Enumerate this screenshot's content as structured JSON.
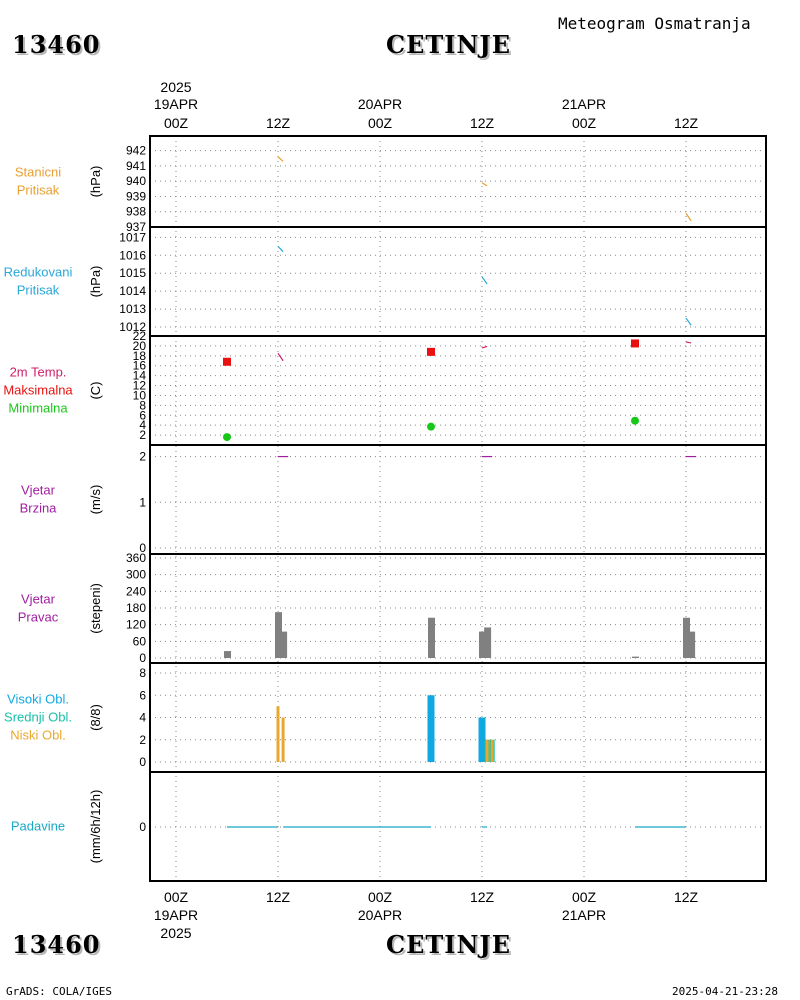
{
  "header": {
    "station_id": "13460",
    "station_name": "CETINJE",
    "title": "Meteogram Osmatranja"
  },
  "footer": {
    "station_id": "13460",
    "station_name": "CETINJE",
    "credit": "GrADS: COLA/IGES",
    "timestamp": "2025-04-21-23:28"
  },
  "colors": {
    "pressure": "#e8a030",
    "reduced_pressure": "#2aa8d8",
    "temp": "#d0206a",
    "tmax": "#e81010",
    "tmin": "#18c818",
    "wind": "#a020a0",
    "bars": "#808080",
    "high_cloud": "#10a8e0",
    "mid_cloud": "#18c0a8",
    "low_cloud": "#e8a830",
    "precip": "#18a8c8"
  },
  "time_axis": {
    "top": [
      {
        "year": "2025",
        "date": "19APR",
        "hour": "00Z"
      },
      {
        "date": "",
        "hour": "12Z"
      },
      {
        "date": "20APR",
        "hour": "00Z"
      },
      {
        "date": "",
        "hour": "12Z"
      },
      {
        "date": "21APR",
        "hour": "00Z"
      },
      {
        "date": "",
        "hour": "12Z"
      }
    ],
    "bottom": [
      {
        "hour": "00Z",
        "date": "19APR",
        "year": "2025"
      },
      {
        "hour": "12Z",
        "date": ""
      },
      {
        "hour": "00Z",
        "date": "20APR"
      },
      {
        "hour": "12Z",
        "date": ""
      },
      {
        "hour": "00Z",
        "date": "21APR"
      },
      {
        "hour": "12Z",
        "date": ""
      }
    ]
  },
  "chart_data": [
    {
      "type": "line",
      "panel": "station_pressure",
      "labels": [
        "Stanicni",
        "Pritisak"
      ],
      "ylabel": "(hPa)",
      "ylim": [
        937,
        942.5
      ],
      "yticks": [
        942,
        941,
        940,
        939,
        938,
        937
      ],
      "series": [
        {
          "points": [
            [
              12,
              941.6
            ],
            [
              12.6,
              941.3
            ],
            [
              36,
              939.9
            ],
            [
              36.6,
              939.7
            ],
            [
              60,
              937.9
            ],
            [
              60.6,
              937.4
            ]
          ]
        }
      ]
    },
    {
      "type": "line",
      "panel": "reduced_pressure",
      "labels": [
        "Redukovani",
        "Pritisak"
      ],
      "ylabel": "(hPa)",
      "ylim": [
        1011.5,
        1017.3
      ],
      "yticks": [
        1017,
        1016,
        1015,
        1014,
        1013,
        1012
      ],
      "series": [
        {
          "points": [
            [
              12,
              1016.5
            ],
            [
              12.6,
              1016.2
            ],
            [
              36,
              1014.8
            ],
            [
              36.6,
              1014.4
            ],
            [
              60,
              1012.5
            ],
            [
              60.6,
              1012.1
            ]
          ]
        }
      ]
    },
    {
      "type": "scatter",
      "panel": "temperature",
      "labels": [
        "2m Temp.",
        "Maksimalna",
        "Minimalna"
      ],
      "ylabel": "(C)",
      "ylim": [
        0,
        22
      ],
      "yticks": [
        2,
        4,
        6,
        8,
        10,
        12,
        14,
        16,
        18,
        20,
        22
      ],
      "temp_2m": [
        [
          12,
          18.5
        ],
        [
          12.6,
          17
        ],
        [
          36,
          19.6
        ],
        [
          36.6,
          19.9
        ],
        [
          60,
          20.8
        ],
        [
          60.6,
          20.6
        ]
      ],
      "tmax": [
        [
          6,
          16.8
        ],
        [
          30,
          18.8
        ],
        [
          54,
          20.5
        ]
      ],
      "tmin": [
        [
          6,
          1.6
        ],
        [
          30,
          3.7
        ],
        [
          54,
          4.9
        ]
      ]
    },
    {
      "type": "line",
      "panel": "wind_speed",
      "labels": [
        "Vjetar",
        "Brzina"
      ],
      "ylabel": "(m/s)",
      "ylim": [
        0,
        2.1
      ],
      "yticks": [
        0,
        1,
        2
      ],
      "series": [
        {
          "points": [
            [
              12,
              2.0
            ],
            [
              13.2,
              2.0
            ],
            [
              36,
              2.0
            ],
            [
              37.2,
              2.0
            ],
            [
              60,
              2.0
            ],
            [
              61.2,
              2.0
            ]
          ]
        }
      ]
    },
    {
      "type": "bar",
      "panel": "wind_direction",
      "labels": [
        "Vjetar",
        "Pravac"
      ],
      "ylabel": "(stepeni)",
      "ylim": [
        0,
        360
      ],
      "yticks": [
        0,
        60,
        120,
        180,
        240,
        300,
        360
      ],
      "bars": [
        [
          6,
          25
        ],
        [
          12,
          165
        ],
        [
          12.6,
          95
        ],
        [
          30,
          145
        ],
        [
          36,
          95
        ],
        [
          36.6,
          110
        ],
        [
          54,
          5
        ],
        [
          60,
          145
        ],
        [
          60.6,
          95
        ]
      ]
    },
    {
      "type": "bar",
      "panel": "clouds",
      "labels": [
        "Visoki Obl.",
        "Srednji Obl.",
        "Niski Obl."
      ],
      "ylabel": "(8/8)",
      "ylim": [
        0,
        8
      ],
      "yticks": [
        0,
        2,
        4,
        6,
        8
      ],
      "high": [
        [
          30,
          6
        ],
        [
          36,
          4
        ]
      ],
      "mid": [
        [
          36.6,
          2
        ],
        [
          37.2,
          2
        ]
      ],
      "low": [
        [
          12,
          5
        ],
        [
          12.6,
          4
        ],
        [
          36.6,
          2
        ],
        [
          37.2,
          2
        ]
      ]
    },
    {
      "type": "line",
      "panel": "precipitation",
      "labels": [
        "Padavine"
      ],
      "ylabel": "(mm/6h/12h)",
      "ylim": [
        -1,
        1
      ],
      "yticks": [
        0
      ],
      "series": [
        {
          "points": [
            [
              6,
              0
            ],
            [
              12,
              0
            ],
            [
              12.6,
              0
            ],
            [
              30,
              0
            ],
            [
              36,
              0
            ],
            [
              36.6,
              0
            ],
            [
              54,
              0
            ],
            [
              60,
              0
            ],
            [
              60.6,
              0
            ]
          ]
        }
      ]
    }
  ]
}
